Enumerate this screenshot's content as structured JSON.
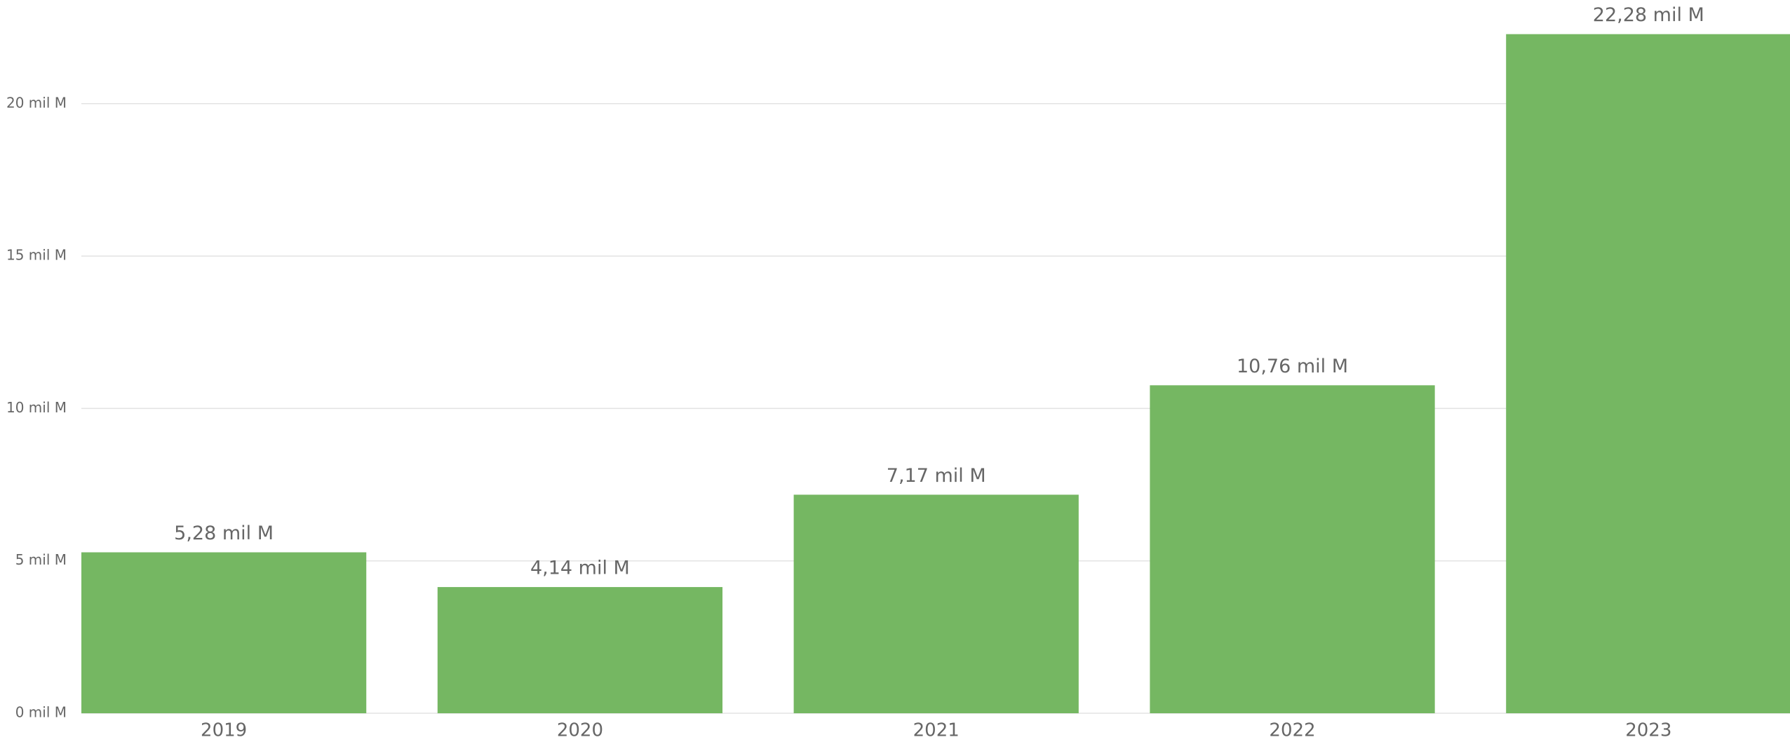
{
  "chart_data": {
    "type": "bar",
    "categories": [
      "2019",
      "2020",
      "2021",
      "2022",
      "2023"
    ],
    "values": [
      5.28,
      4.14,
      7.17,
      10.76,
      22.28
    ],
    "value_labels": [
      "5,28 mil M",
      "4,14 mil M",
      "7,17 mil M",
      "10,76 mil M",
      "22,28 mil M"
    ],
    "color": "#75b762",
    "ylim": [
      0,
      23.4
    ],
    "yticks": [
      {
        "value": 0,
        "label": "0 mil M"
      },
      {
        "value": 5,
        "label": "5 mil M"
      },
      {
        "value": 10,
        "label": "10 mil M"
      },
      {
        "value": 15,
        "label": "15 mil M"
      },
      {
        "value": 20,
        "label": "20 mil M"
      }
    ],
    "grid": true
  }
}
